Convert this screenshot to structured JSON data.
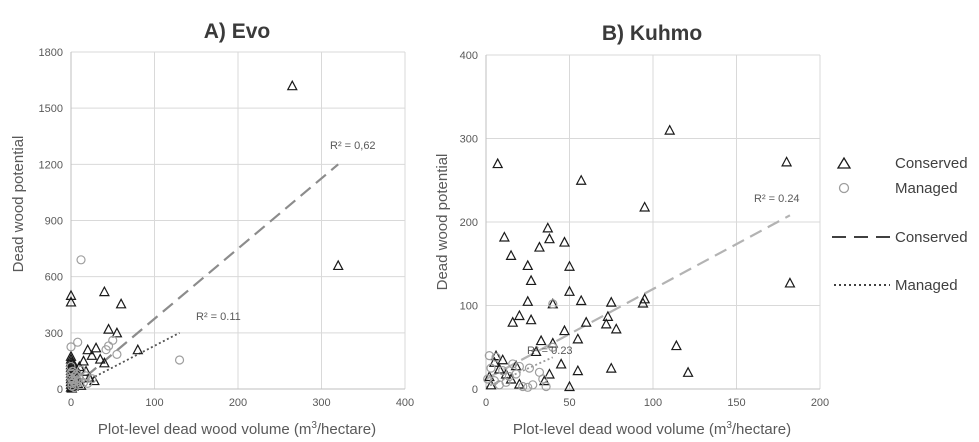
{
  "legend": {
    "conserved_marker": "Conserved",
    "managed_marker": "Managed",
    "conserved_line": "Conserved",
    "managed_line": "Managed"
  },
  "chart_data": [
    {
      "type": "scatter",
      "title": "A) Evo",
      "xlabel_pre": "Plot-level dead wood volume (m",
      "xlabel_sup": "3",
      "xlabel_post": "/hectare)",
      "ylabel": "Dead wood potential",
      "xlim": [
        0,
        400
      ],
      "ylim": [
        0,
        1800
      ],
      "xticks": [
        0,
        100,
        200,
        300,
        400
      ],
      "yticks": [
        0,
        300,
        600,
        900,
        1200,
        1500,
        1800
      ],
      "grid": true,
      "colors": {
        "conserved": "#1a1a1a",
        "managed": "#9e9e9e",
        "conserved_trend": "#8c8c8c",
        "managed_trend": "#555555"
      },
      "series": [
        {
          "name": "Conserved",
          "marker": "triangle",
          "points": [
            [
              265,
              1620
            ],
            [
              320,
              660
            ],
            [
              40,
              520
            ],
            [
              60,
              455
            ],
            [
              0,
              500
            ],
            [
              0,
              465
            ],
            [
              45,
              320
            ],
            [
              55,
              300
            ],
            [
              80,
              210
            ],
            [
              30,
              220
            ],
            [
              20,
              210
            ],
            [
              25,
              180
            ],
            [
              35,
              160
            ],
            [
              40,
              140
            ],
            [
              15,
              150
            ],
            [
              10,
              120
            ],
            [
              5,
              100
            ],
            [
              2,
              80
            ],
            [
              0,
              175
            ],
            [
              0,
              160
            ],
            [
              0,
              145
            ],
            [
              0,
              130
            ],
            [
              0,
              115
            ],
            [
              0,
              100
            ],
            [
              0,
              85
            ],
            [
              0,
              70
            ],
            [
              0,
              55
            ],
            [
              0,
              40
            ],
            [
              0,
              25
            ],
            [
              0,
              10
            ],
            [
              3,
              60
            ],
            [
              5,
              45
            ],
            [
              8,
              30
            ],
            [
              12,
              20
            ],
            [
              2,
              140
            ],
            [
              6,
              110
            ],
            [
              4,
              90
            ],
            [
              10,
              75
            ],
            [
              18,
              95
            ],
            [
              22,
              60
            ],
            [
              28,
              45
            ],
            [
              1,
              5
            ],
            [
              3,
              15
            ]
          ]
        },
        {
          "name": "Managed",
          "marker": "circle",
          "points": [
            [
              12,
              690
            ],
            [
              130,
              155
            ],
            [
              0,
              225
            ],
            [
              8,
              250
            ],
            [
              45,
              230
            ],
            [
              50,
              260
            ],
            [
              55,
              185
            ],
            [
              42,
              210
            ],
            [
              0,
              120
            ],
            [
              2,
              95
            ],
            [
              5,
              70
            ],
            [
              10,
              55
            ],
            [
              3,
              40
            ],
            [
              6,
              25
            ],
            [
              1,
              15
            ],
            [
              4,
              8
            ],
            [
              8,
              45
            ],
            [
              15,
              35
            ],
            [
              20,
              30
            ],
            [
              0,
              60
            ],
            [
              0,
              85
            ],
            [
              1,
              30
            ],
            [
              2,
              50
            ],
            [
              7,
              80
            ],
            [
              12,
              100
            ],
            [
              18,
              70
            ],
            [
              25,
              55
            ]
          ]
        }
      ],
      "trendlines": [
        {
          "name": "Conserved",
          "style": "dashed",
          "x": [
            0,
            320
          ],
          "y": [
            0,
            1200
          ],
          "r2_label": "R² = 0,62"
        },
        {
          "name": "Managed",
          "style": "dotted",
          "x": [
            0,
            130
          ],
          "y": [
            0,
            300
          ],
          "r2_label": "R² = 0.11"
        }
      ]
    },
    {
      "type": "scatter",
      "title": "B) Kuhmo",
      "xlabel_pre": "Plot-level dead wood volume (m",
      "xlabel_sup": "3",
      "xlabel_post": "/hectare)",
      "ylabel": "Dead wood potential",
      "xlim": [
        0,
        200
      ],
      "ylim": [
        0,
        400
      ],
      "xticks": [
        0,
        50,
        100,
        150,
        200
      ],
      "yticks": [
        0,
        100,
        200,
        300,
        400
      ],
      "grid": true,
      "colors": {
        "conserved": "#1a1a1a",
        "managed": "#9e9e9e",
        "conserved_trend": "#b3b3b3",
        "managed_trend": "#9a9a9a"
      },
      "series": [
        {
          "name": "Conserved",
          "marker": "triangle",
          "points": [
            [
              110,
              310
            ],
            [
              180,
              272
            ],
            [
              7,
              270
            ],
            [
              57,
              250
            ],
            [
              95,
              218
            ],
            [
              182,
              127
            ],
            [
              37,
              193
            ],
            [
              38,
              180
            ],
            [
              11,
              182
            ],
            [
              47,
              176
            ],
            [
              32,
              170
            ],
            [
              15,
              160
            ],
            [
              25,
              148
            ],
            [
              50,
              147
            ],
            [
              27,
              130
            ],
            [
              57,
              106
            ],
            [
              95,
              108
            ],
            [
              94,
              103
            ],
            [
              75,
              104
            ],
            [
              73,
              87
            ],
            [
              78,
              72
            ],
            [
              25,
              105
            ],
            [
              40,
              102
            ],
            [
              20,
              88
            ],
            [
              27,
              83
            ],
            [
              16,
              80
            ],
            [
              60,
              80
            ],
            [
              50,
              117
            ],
            [
              72,
              78
            ],
            [
              47,
              70
            ],
            [
              55,
              60
            ],
            [
              33,
              58
            ],
            [
              40,
              55
            ],
            [
              30,
              45
            ],
            [
              114,
              52
            ],
            [
              121,
              20
            ],
            [
              75,
              25
            ],
            [
              55,
              22
            ],
            [
              38,
              18
            ],
            [
              50,
              3
            ],
            [
              5,
              32
            ],
            [
              8,
              24
            ],
            [
              12,
              18
            ],
            [
              15,
              12
            ],
            [
              20,
              6
            ],
            [
              3,
              5
            ],
            [
              2,
              15
            ],
            [
              6,
              40
            ],
            [
              10,
              35
            ],
            [
              18,
              28
            ],
            [
              35,
              10
            ],
            [
              45,
              30
            ]
          ]
        },
        {
          "name": "Managed",
          "marker": "circle",
          "points": [
            [
              40,
              102
            ],
            [
              2,
              40
            ],
            [
              6,
              38
            ],
            [
              20,
              27
            ],
            [
              26,
              25
            ],
            [
              18,
              18
            ],
            [
              14,
              15
            ],
            [
              10,
              22
            ],
            [
              5,
              10
            ],
            [
              8,
              5
            ],
            [
              22,
              3
            ],
            [
              25,
              2
            ],
            [
              34,
              12
            ],
            [
              36,
              3
            ],
            [
              32,
              20
            ],
            [
              40,
              50
            ],
            [
              3,
              25
            ],
            [
              1,
              12
            ],
            [
              12,
              8
            ],
            [
              16,
              30
            ],
            [
              28,
              5
            ]
          ]
        }
      ],
      "trendlines": [
        {
          "name": "Conserved",
          "style": "dashed",
          "x": [
            0,
            182
          ],
          "y": [
            12,
            208
          ],
          "r2_label": "R² = 0.24"
        },
        {
          "name": "Managed",
          "style": "dotted",
          "x": [
            0,
            40
          ],
          "y": [
            2,
            38
          ],
          "r2_label": "R² = 0.23"
        }
      ]
    }
  ]
}
